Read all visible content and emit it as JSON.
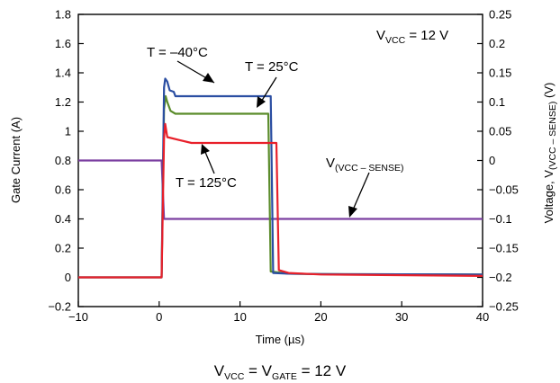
{
  "chart_data": {
    "type": "line",
    "xlabel": "Time (µs)",
    "ylabel": "Gate Current (A)",
    "y2label": {
      "main": "Voltage, V",
      "sub": "(VCC – SENSE)",
      "unit": " (V)"
    },
    "xlim": [
      -10,
      40
    ],
    "ylim": [
      -0.2,
      1.8
    ],
    "y2lim": [
      -0.25,
      0.25
    ],
    "x_ticks": [
      -10,
      0,
      10,
      20,
      30,
      40
    ],
    "y_ticks": [
      -0.2,
      0,
      0.2,
      0.4,
      0.6,
      0.8,
      1,
      1.2,
      1.4,
      1.6,
      1.8
    ],
    "y_tick_labels": [
      "−0.2",
      "0",
      "0.2",
      "0.4",
      "0.6",
      "0.8",
      "1",
      "1.2",
      "1.4",
      "1.6",
      "1.8"
    ],
    "y2_ticks": [
      -0.25,
      -0.2,
      -0.15,
      -0.1,
      -0.05,
      0,
      0.05,
      0.1,
      0.15,
      0.2,
      0.25
    ],
    "y2_tick_labels": [
      "−0.25",
      "−0.2",
      "−0.15",
      "−0.1",
      "−0.05",
      "0",
      "0.05",
      "0.1",
      "0.15",
      "0.2",
      "0.25"
    ],
    "grid": false,
    "series": [
      {
        "name": "T = −40°C",
        "axis": "left",
        "color": "#2b4ea2",
        "points": [
          [
            -10,
            0
          ],
          [
            0.3,
            0
          ],
          [
            0.6,
            1.3
          ],
          [
            0.75,
            1.36
          ],
          [
            1.0,
            1.34
          ],
          [
            1.3,
            1.28
          ],
          [
            1.8,
            1.27
          ],
          [
            2.0,
            1.24
          ],
          [
            13.8,
            1.24
          ],
          [
            14.1,
            0.03
          ],
          [
            16,
            0.025
          ],
          [
            20,
            0.022
          ],
          [
            40,
            0.02
          ]
        ]
      },
      {
        "name": "T = 25°C",
        "axis": "left",
        "color": "#5b8c2b",
        "points": [
          [
            -10,
            0
          ],
          [
            0.3,
            0
          ],
          [
            0.6,
            1.15
          ],
          [
            0.8,
            1.24
          ],
          [
            1.0,
            1.2
          ],
          [
            1.4,
            1.14
          ],
          [
            2.0,
            1.12
          ],
          [
            13.5,
            1.12
          ],
          [
            13.8,
            0.04
          ],
          [
            16,
            0.025
          ],
          [
            20,
            0.022
          ],
          [
            40,
            0.02
          ]
        ]
      },
      {
        "name": "T = 125°C",
        "axis": "left",
        "color": "#e8202a",
        "points": [
          [
            -10,
            0
          ],
          [
            0.3,
            0
          ],
          [
            0.6,
            0.95
          ],
          [
            0.75,
            1.05
          ],
          [
            1.0,
            0.96
          ],
          [
            2.5,
            0.94
          ],
          [
            4.0,
            0.92
          ],
          [
            14.5,
            0.92
          ],
          [
            14.8,
            0.05
          ],
          [
            16,
            0.03
          ],
          [
            20,
            0.02
          ],
          [
            40,
            0.01
          ]
        ]
      },
      {
        "name": "V(VCC – SENSE)",
        "axis": "right",
        "color": "#7b3fa0",
        "points": [
          [
            -10,
            0
          ],
          [
            0.3,
            0
          ],
          [
            0.6,
            -0.1
          ],
          [
            40,
            -0.1
          ]
        ]
      }
    ],
    "annotations": [
      {
        "text": "T = –40°C"
      },
      {
        "text": "T = 25°C"
      },
      {
        "text": "T = 125°C"
      },
      {
        "text": "V",
        "sub": "(VCC – SENSE)"
      }
    ],
    "inset_label": {
      "v": "V",
      "sub": "VCC",
      "rest": " = 12 V"
    },
    "footer": {
      "v1": "V",
      "sub1": "VCC",
      "mid": " = V",
      "sub2": "GATE",
      "rest": " = 12 V"
    }
  }
}
